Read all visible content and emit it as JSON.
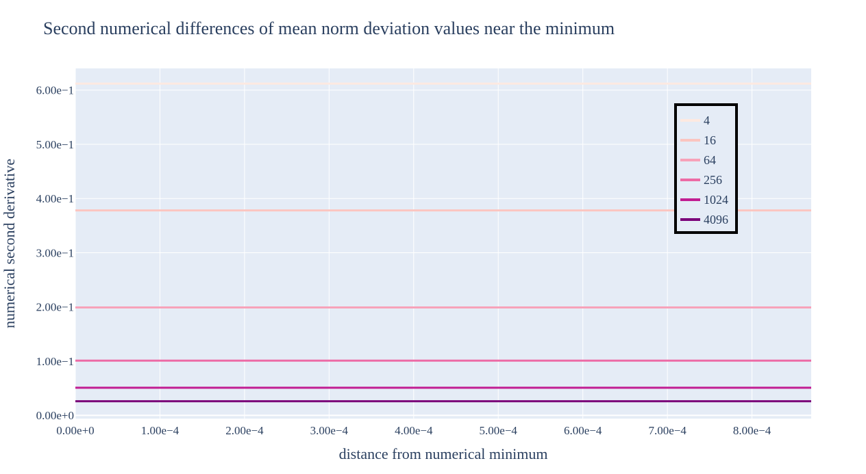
{
  "chart_data": {
    "type": "line",
    "title": "Second numerical differences of mean norm deviation values near the minimum",
    "xlabel": "distance from numerical minimum",
    "ylabel": "numerical second derivative",
    "xlim": [
      0,
      0.00087
    ],
    "ylim": [
      -0.006,
      0.64
    ],
    "xticks": [
      {
        "value": 0,
        "label": "0.00e+0"
      },
      {
        "value": 0.0001,
        "label": "1.00e−4"
      },
      {
        "value": 0.0002,
        "label": "2.00e−4"
      },
      {
        "value": 0.0003,
        "label": "3.00e−4"
      },
      {
        "value": 0.0004,
        "label": "4.00e−4"
      },
      {
        "value": 0.0005,
        "label": "5.00e−4"
      },
      {
        "value": 0.0006,
        "label": "6.00e−4"
      },
      {
        "value": 0.0007,
        "label": "7.00e−4"
      },
      {
        "value": 0.0008,
        "label": "8.00e−4"
      }
    ],
    "yticks": [
      {
        "value": 0,
        "label": "0.00e+0"
      },
      {
        "value": 0.1,
        "label": "1.00e−1"
      },
      {
        "value": 0.2,
        "label": "2.00e−1"
      },
      {
        "value": 0.3,
        "label": "3.00e−1"
      },
      {
        "value": 0.4,
        "label": "4.00e−1"
      },
      {
        "value": 0.5,
        "label": "5.00e−1"
      },
      {
        "value": 0.6,
        "label": "6.00e−1"
      }
    ],
    "grid": true,
    "legend_position": "top-right",
    "series": [
      {
        "name": "4",
        "color": "#fde9e1",
        "x": [
          0,
          0.00087
        ],
        "y": [
          0.612,
          0.612
        ]
      },
      {
        "name": "16",
        "color": "#fbc5c0",
        "x": [
          0,
          0.00087
        ],
        "y": [
          0.378,
          0.378
        ]
      },
      {
        "name": "64",
        "color": "#f7a2b9",
        "x": [
          0,
          0.00087
        ],
        "y": [
          0.199,
          0.199
        ]
      },
      {
        "name": "256",
        "color": "#ed6ba5",
        "x": [
          0,
          0.00087
        ],
        "y": [
          0.101,
          0.101
        ]
      },
      {
        "name": "1024",
        "color": "#c11d92",
        "x": [
          0,
          0.00087
        ],
        "y": [
          0.051,
          0.051
        ]
      },
      {
        "name": "4096",
        "color": "#7a0179",
        "x": [
          0,
          0.00087
        ],
        "y": [
          0.026,
          0.026
        ]
      }
    ]
  }
}
